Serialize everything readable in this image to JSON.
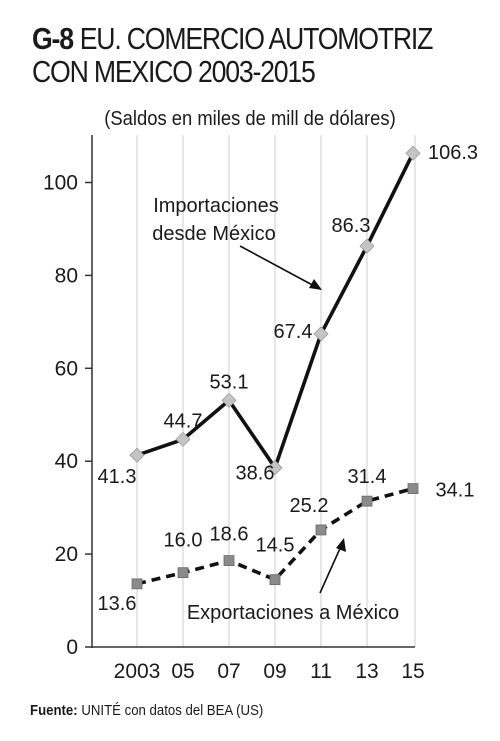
{
  "header": {
    "code": "G-8",
    "title_line1": "EU. COMERCIO AUTOMOTRIZ",
    "title_line2": "CON MEXICO 2003-2015",
    "subtitle": "(Saldos en miles de mill de dólares)"
  },
  "footer": {
    "source_label": "Fuente:",
    "source_text": "UNITÉ con datos del BEA (US)"
  },
  "colors": {
    "line": "#111111",
    "import_marker": "#c4c4c4",
    "export_marker": "#8a8a8a",
    "grid": "#d6d6d6"
  },
  "chart_data": {
    "type": "line",
    "categories": [
      "2003",
      "05",
      "07",
      "09",
      "11",
      "13",
      "15"
    ],
    "ylim": [
      0,
      110
    ],
    "yticks": [
      "0",
      "20",
      "40",
      "60",
      "80",
      "100"
    ],
    "grid": "vertical",
    "series": [
      {
        "name": "Importaciones desde México",
        "style": "solid",
        "marker": "diamond",
        "values": [
          41.3,
          44.7,
          53.1,
          38.6,
          67.4,
          86.3,
          106.3
        ],
        "labels": [
          "41.3",
          "44.7",
          "53.1",
          "38.6",
          "67.4",
          "86.3",
          "106.3"
        ]
      },
      {
        "name": "Exportaciones a México",
        "style": "dashed",
        "marker": "square",
        "values": [
          13.6,
          16.0,
          18.6,
          14.5,
          25.2,
          31.4,
          34.1
        ],
        "labels": [
          "13.6",
          "16.0",
          "18.6",
          "14.5",
          "25.2",
          "31.4",
          "34.1"
        ]
      }
    ]
  }
}
